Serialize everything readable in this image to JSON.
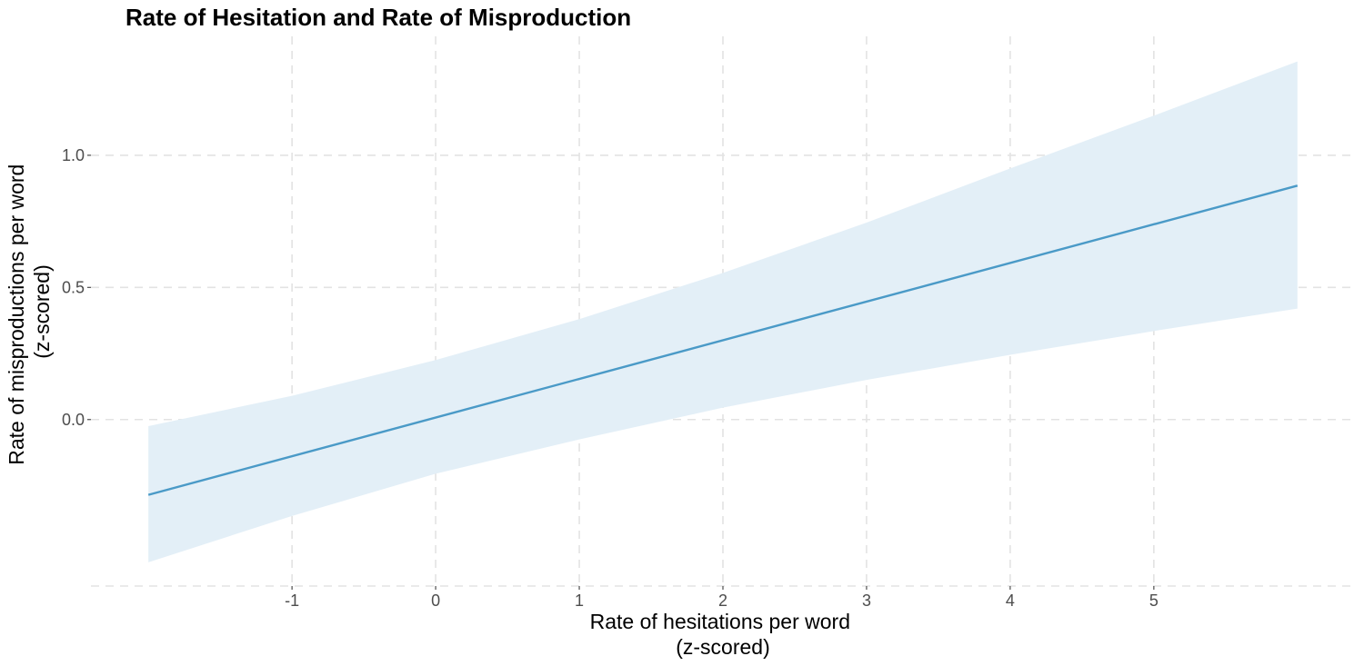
{
  "chart_data": {
    "type": "line",
    "title": "Rate of Hesitation and Rate of Misproduction",
    "xlabel": "Rate of hesitations per word\n(z-scored)",
    "ylabel": "Rate of misproductions per word\n(z-scored)",
    "xlim": [
      -2.4,
      6.4
    ],
    "ylim": [
      -0.63,
      1.45
    ],
    "x_ticks": [
      -1,
      0,
      1,
      2,
      3,
      4,
      5
    ],
    "x_tick_labels": [
      "-1",
      "0",
      "1",
      "2",
      "3",
      "4",
      "5"
    ],
    "y_ticks": [
      0.0,
      0.5,
      1.0
    ],
    "y_tick_labels": [
      "0.0",
      "0.5",
      "1.0"
    ],
    "grid": true,
    "series": [
      {
        "x": [
          -2.0,
          6.0
        ],
        "y": [
          -0.285,
          0.885
        ],
        "ci_x": [
          -2.0,
          -1.0,
          0.0,
          1.0,
          2.0,
          3.0,
          4.0,
          5.0,
          6.0
        ],
        "ci_lower": [
          -0.54,
          -0.365,
          -0.205,
          -0.075,
          0.045,
          0.15,
          0.245,
          0.335,
          0.42
        ],
        "ci_upper": [
          -0.025,
          0.09,
          0.225,
          0.38,
          0.555,
          0.745,
          0.95,
          1.15,
          1.355
        ],
        "color": "#4a9ac7",
        "band_color": "#e3eff7"
      }
    ]
  }
}
